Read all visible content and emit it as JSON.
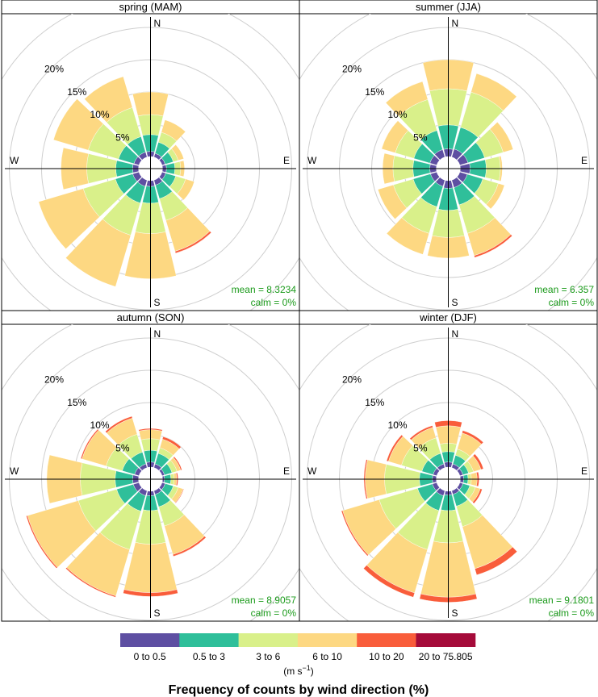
{
  "chart_data": [
    {
      "type": "polar-stacked-bar",
      "title": "spring (MAM)",
      "mean_text": "mean = 8.3234",
      "calm_text": "calm = 0%",
      "directions_deg": [
        0,
        30,
        60,
        90,
        120,
        150,
        180,
        210,
        240,
        270,
        300,
        330
      ],
      "cumulative_percent": [
        [
          0,
          0.8,
          3.4,
          6.5,
          10.0,
          10.0
        ],
        [
          0,
          0.6,
          2.4,
          4.0,
          6.0,
          6.0
        ],
        [
          0,
          0.5,
          1.8,
          2.6,
          3.5,
          3.5
        ],
        [
          0,
          0.6,
          1.9,
          2.8,
          3.4,
          3.4
        ],
        [
          0,
          0.6,
          2.2,
          3.8,
          5.2,
          5.2
        ],
        [
          0,
          0.8,
          3.0,
          6.5,
          11.5,
          11.8
        ],
        [
          0,
          0.9,
          3.5,
          8.2,
          15.2,
          15.2
        ],
        [
          0,
          1.0,
          3.7,
          8.9,
          17.2,
          17.2
        ],
        [
          0,
          1.0,
          3.8,
          9.0,
          16.2,
          16.2
        ],
        [
          0,
          0.9,
          3.5,
          8.0,
          12.0,
          12.0
        ],
        [
          0,
          0.8,
          3.3,
          8.2,
          13.8,
          13.8
        ],
        [
          0,
          0.8,
          3.3,
          8.0,
          13.0,
          13.0
        ]
      ]
    },
    {
      "type": "polar-stacked-bar",
      "title": "summer (JJA)",
      "mean_text": "mean = 6.357",
      "calm_text": "calm = 0%",
      "directions_deg": [
        0,
        30,
        60,
        90,
        120,
        150,
        180,
        210,
        240,
        270,
        300,
        330
      ],
      "cumulative_percent": [
        [
          0,
          1.2,
          4.9,
          10.5,
          15.0,
          15.0
        ],
        [
          0,
          1.3,
          4.8,
          10.5,
          13.5,
          13.5
        ],
        [
          0,
          1.3,
          4.0,
          7.0,
          8.6,
          8.6
        ],
        [
          0,
          1.5,
          4.0,
          6.2,
          6.5,
          6.5
        ],
        [
          0,
          1.2,
          3.7,
          6.2,
          7.2,
          7.2
        ],
        [
          0,
          1.2,
          4.0,
          8.6,
          12.2,
          12.5
        ],
        [
          0,
          1.2,
          4.6,
          8.8,
          12.0,
          12.0
        ],
        [
          0,
          1.0,
          4.3,
          8.6,
          12.0,
          12.0
        ],
        [
          0,
          1.0,
          3.8,
          7.0,
          9.5,
          9.5
        ],
        [
          0,
          1.0,
          3.6,
          6.7,
          8.3,
          8.3
        ],
        [
          0,
          1.1,
          3.7,
          6.7,
          8.9,
          8.9
        ],
        [
          0,
          1.2,
          4.3,
          9.3,
          12.2,
          12.2
        ]
      ]
    },
    {
      "type": "polar-stacked-bar",
      "title": "autumn (SON)",
      "mean_text": "mean = 8.9057",
      "calm_text": "calm = 0%",
      "directions_deg": [
        0,
        30,
        60,
        90,
        120,
        150,
        180,
        210,
        240,
        270,
        300,
        330
      ],
      "cumulative_percent": [
        [
          0,
          0.8,
          2.6,
          4.4,
          5.8,
          6.0
        ],
        [
          0,
          0.6,
          2.3,
          3.2,
          4.6,
          5.0
        ],
        [
          0,
          0.4,
          1.6,
          2.4,
          3.0,
          3.2
        ],
        [
          0,
          0.3,
          1.3,
          1.8,
          2.2,
          2.4
        ],
        [
          0,
          0.5,
          1.8,
          2.6,
          3.4,
          3.5
        ],
        [
          0,
          0.6,
          2.6,
          5.7,
          10.3,
          10.6
        ],
        [
          0,
          0.7,
          3.0,
          8.2,
          15.7,
          16.3
        ],
        [
          0,
          0.8,
          3.3,
          9.5,
          17.0,
          17.2
        ],
        [
          0,
          0.9,
          3.6,
          9.8,
          18.0,
          18.2
        ],
        [
          0,
          0.9,
          3.6,
          9.0,
          14.2,
          14.2
        ],
        [
          0,
          0.7,
          2.7,
          5.3,
          9.2,
          9.4
        ],
        [
          0,
          0.6,
          2.5,
          5.4,
          8.0,
          8.3
        ]
      ]
    },
    {
      "type": "polar-stacked-bar",
      "title": "winter (DJF)",
      "mean_text": "mean = 9.1801",
      "calm_text": "calm = 0%",
      "directions_deg": [
        0,
        30,
        60,
        90,
        120,
        150,
        180,
        210,
        240,
        270,
        300,
        330
      ],
      "cumulative_percent": [
        [
          0,
          0.8,
          2.4,
          3.7,
          6.4,
          7.2
        ],
        [
          0,
          0.6,
          2.0,
          3.0,
          5.6,
          6.0
        ],
        [
          0,
          0.5,
          1.4,
          2.2,
          3.4,
          3.8
        ],
        [
          0,
          0.5,
          1.2,
          1.7,
          2.6,
          2.9
        ],
        [
          0,
          0.5,
          1.6,
          2.5,
          3.3,
          3.6
        ],
        [
          0,
          0.6,
          2.5,
          5.8,
          12.6,
          13.6
        ],
        [
          0,
          0.6,
          3.0,
          8.0,
          16.4,
          17.2
        ],
        [
          0,
          0.8,
          3.2,
          9.5,
          16.5,
          17.2
        ],
        [
          0,
          0.7,
          3.1,
          9.3,
          15.2,
          15.4
        ],
        [
          0,
          0.6,
          2.6,
          8.0,
          11.0,
          11.2
        ],
        [
          0,
          0.6,
          2.4,
          5.7,
          7.8,
          8.1
        ],
        [
          0,
          0.6,
          2.3,
          4.8,
          6.5,
          6.8
        ]
      ]
    }
  ],
  "shared": {
    "radial_max_percent": 20,
    "ring_labels": [
      "5%",
      "10%",
      "15%",
      "20%"
    ],
    "compass": {
      "north": "N",
      "east": "E",
      "south": "S",
      "west": "W"
    }
  },
  "legend": {
    "bins": [
      {
        "label": "0 to 0.5",
        "color": "#5e4fa2"
      },
      {
        "label": "0.5 to 3",
        "color": "#2fbf9a"
      },
      {
        "label": "3 to 6",
        "color": "#d9f08a"
      },
      {
        "label": "6 to 10",
        "color": "#fdd882"
      },
      {
        "label": "10 to 20",
        "color": "#f95d3b"
      },
      {
        "label": "20 to 75.805",
        "color": "#a50b3a"
      }
    ],
    "unit_label": "(m s",
    "unit_superscript": "−1",
    "unit_close": ")",
    "title": "Frequency of counts by wind direction (%)"
  }
}
